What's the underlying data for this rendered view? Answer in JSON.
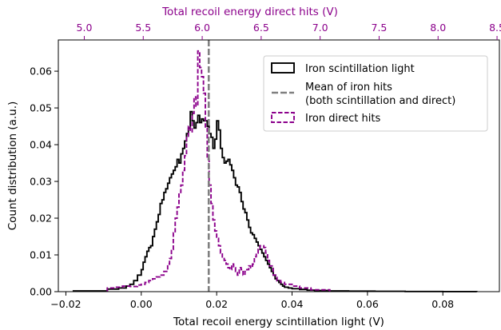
{
  "chart_data": {
    "type": "histogram",
    "xlabel": "Total recoil energy scintillation light (V)",
    "ylabel": "Count distribution (a.u.)",
    "x2label": "Total recoil energy direct hits (V)",
    "xlim": [
      -0.022,
      0.095
    ],
    "ylim": [
      0.0,
      0.0685
    ],
    "x2lim": [
      4.78,
      8.52
    ],
    "x_ticks": [
      -0.02,
      0.0,
      0.02,
      0.04,
      0.06,
      0.08
    ],
    "x_tick_labels": [
      "−0.02",
      "0.00",
      "0.02",
      "0.04",
      "0.06",
      "0.08"
    ],
    "y_ticks": [
      0.0,
      0.01,
      0.02,
      0.03,
      0.04,
      0.05,
      0.06
    ],
    "y_tick_labels": [
      "0.00",
      "0.01",
      "0.02",
      "0.03",
      "0.04",
      "0.05",
      "0.06"
    ],
    "x2_ticks": [
      5.0,
      5.5,
      6.0,
      6.5,
      7.0,
      7.5,
      8.0,
      8.5
    ],
    "x2_tick_labels": [
      "5.0",
      "5.5",
      "6.0",
      "6.5",
      "7.0",
      "7.5",
      "8.0",
      "8.5"
    ],
    "grid": false,
    "legend_position": "top-right",
    "colors": {
      "scintillation": "#000000",
      "direct": "#8b008b",
      "mean": "#808080",
      "top_axis": "#8b008b"
    },
    "mean_x": 0.0179,
    "series": [
      {
        "name": "Iron scintillation light",
        "style": "solid",
        "x_edges": [
          -0.018,
          -0.009,
          -0.006,
          -0.004,
          -0.003,
          -0.002,
          -0.001,
          0.0,
          0.0005,
          0.001,
          0.0015,
          0.002,
          0.0025,
          0.003,
          0.0035,
          0.004,
          0.0045,
          0.005,
          0.0055,
          0.006,
          0.0065,
          0.007,
          0.0075,
          0.008,
          0.0085,
          0.009,
          0.0095,
          0.01,
          0.0105,
          0.011,
          0.0115,
          0.012,
          0.0125,
          0.013,
          0.0135,
          0.014,
          0.0145,
          0.015,
          0.0155,
          0.016,
          0.0165,
          0.017,
          0.0175,
          0.018,
          0.0185,
          0.019,
          0.0195,
          0.02,
          0.0205,
          0.021,
          0.0215,
          0.022,
          0.0225,
          0.023,
          0.0235,
          0.024,
          0.0245,
          0.025,
          0.0255,
          0.026,
          0.0265,
          0.027,
          0.0275,
          0.028,
          0.0285,
          0.029,
          0.0295,
          0.03,
          0.0305,
          0.031,
          0.0315,
          0.032,
          0.0325,
          0.033,
          0.0335,
          0.034,
          0.0345,
          0.035,
          0.0355,
          0.036,
          0.0365,
          0.037,
          0.0375,
          0.038,
          0.039,
          0.04,
          0.042,
          0.044,
          0.046,
          0.05,
          0.055,
          0.062,
          0.07,
          0.08,
          0.089
        ],
        "values": [
          0.0002,
          0.0007,
          0.001,
          0.0015,
          0.002,
          0.003,
          0.0045,
          0.006,
          0.008,
          0.0095,
          0.011,
          0.012,
          0.0125,
          0.015,
          0.017,
          0.019,
          0.021,
          0.024,
          0.025,
          0.027,
          0.028,
          0.0295,
          0.031,
          0.032,
          0.033,
          0.034,
          0.036,
          0.035,
          0.0375,
          0.039,
          0.041,
          0.043,
          0.0445,
          0.049,
          0.0465,
          0.0445,
          0.046,
          0.048,
          0.046,
          0.047,
          0.0465,
          0.0465,
          0.045,
          0.043,
          0.042,
          0.039,
          0.0415,
          0.0465,
          0.044,
          0.039,
          0.0365,
          0.035,
          0.0355,
          0.036,
          0.0345,
          0.033,
          0.031,
          0.029,
          0.0285,
          0.027,
          0.0245,
          0.0225,
          0.0215,
          0.0195,
          0.0175,
          0.016,
          0.0155,
          0.0145,
          0.0135,
          0.0125,
          0.0115,
          0.0105,
          0.0095,
          0.0085,
          0.0075,
          0.0065,
          0.0055,
          0.0045,
          0.0035,
          0.003,
          0.0025,
          0.002,
          0.0015,
          0.0012,
          0.001,
          0.0008,
          0.0006,
          0.0004,
          0.0003,
          0.0002,
          0.00015,
          0.0001,
          5e-05,
          2e-05
        ]
      },
      {
        "name": "Iron direct hits",
        "style": "dashed",
        "x_edges": [
          -0.009,
          -0.007,
          -0.005,
          -0.003,
          -0.001,
          0.0,
          0.001,
          0.002,
          0.003,
          0.004,
          0.005,
          0.006,
          0.007,
          0.0075,
          0.008,
          0.0085,
          0.009,
          0.0095,
          0.01,
          0.0105,
          0.011,
          0.0115,
          0.012,
          0.0125,
          0.013,
          0.0135,
          0.014,
          0.0145,
          0.015,
          0.0155,
          0.016,
          0.0165,
          0.017,
          0.0175,
          0.018,
          0.0185,
          0.019,
          0.0195,
          0.02,
          0.0205,
          0.021,
          0.0215,
          0.022,
          0.0225,
          0.023,
          0.0235,
          0.024,
          0.0245,
          0.025,
          0.0255,
          0.026,
          0.0265,
          0.027,
          0.0275,
          0.028,
          0.0285,
          0.029,
          0.0295,
          0.03,
          0.0305,
          0.031,
          0.0315,
          0.032,
          0.0325,
          0.033,
          0.0335,
          0.034,
          0.035,
          0.036,
          0.037,
          0.038,
          0.04,
          0.042,
          0.045,
          0.05
        ],
        "values": [
          0.001,
          0.0012,
          0.0015,
          0.0014,
          0.0018,
          0.002,
          0.0025,
          0.003,
          0.0035,
          0.004,
          0.0045,
          0.0055,
          0.0075,
          0.009,
          0.0115,
          0.016,
          0.02,
          0.023,
          0.027,
          0.029,
          0.033,
          0.037,
          0.042,
          0.045,
          0.0435,
          0.0485,
          0.053,
          0.0505,
          0.0655,
          0.061,
          0.0585,
          0.054,
          0.0445,
          0.036,
          0.029,
          0.024,
          0.0195,
          0.0165,
          0.0145,
          0.0125,
          0.0105,
          0.009,
          0.0085,
          0.0075,
          0.0065,
          0.006,
          0.0075,
          0.0065,
          0.0055,
          0.0045,
          0.0065,
          0.006,
          0.0045,
          0.0055,
          0.006,
          0.007,
          0.0065,
          0.0075,
          0.0095,
          0.0105,
          0.0115,
          0.0125,
          0.0125,
          0.012,
          0.0105,
          0.0085,
          0.007,
          0.0045,
          0.003,
          0.0025,
          0.002,
          0.0015,
          0.001,
          0.0005
        ]
      }
    ],
    "legend": [
      {
        "key": "scintillation",
        "label": "Iron scintillation light"
      },
      {
        "key": "mean",
        "label_line1": "Mean of iron hits",
        "label_line2": "(both scintillation and direct)"
      },
      {
        "key": "direct",
        "label": "Iron direct hits"
      }
    ]
  }
}
